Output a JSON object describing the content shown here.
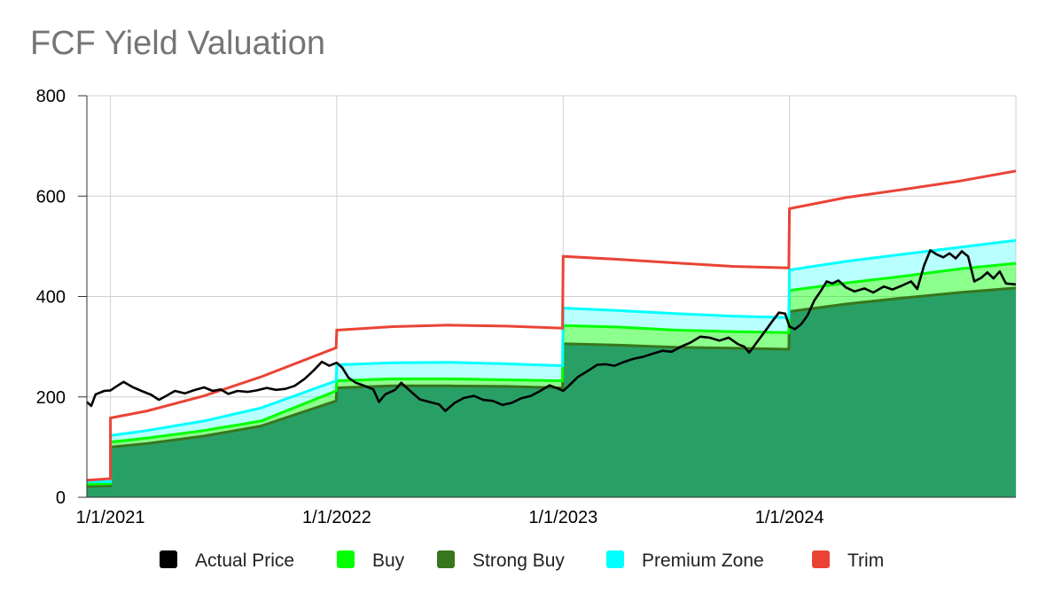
{
  "chart_data": {
    "type": "area",
    "title": "FCF Yield Valuation",
    "xlabel": "",
    "ylabel": "",
    "x_range": [
      "2020-11-24",
      "2024-12-31"
    ],
    "ylim": [
      0,
      800
    ],
    "y_ticks": [
      0,
      200,
      400,
      600,
      800
    ],
    "x_ticks": [
      {
        "date": "2021-01-01",
        "label": "1/1/2021"
      },
      {
        "date": "2022-01-01",
        "label": "1/1/2022"
      },
      {
        "date": "2023-01-01",
        "label": "1/1/2023"
      },
      {
        "date": "2024-01-01",
        "label": "1/1/2024"
      }
    ],
    "grid": true,
    "legend_position": "bottom",
    "series": [
      {
        "name": "Actual Price",
        "color": "#000000",
        "style": "line",
        "points": [
          [
            "2020-11-24",
            190
          ],
          [
            "2020-12-01",
            182
          ],
          [
            "2020-12-08",
            205
          ],
          [
            "2020-12-22",
            212
          ],
          [
            "2021-01-01",
            213
          ],
          [
            "2021-01-12",
            222
          ],
          [
            "2021-01-22",
            230
          ],
          [
            "2021-02-05",
            220
          ],
          [
            "2021-02-20",
            212
          ],
          [
            "2021-03-08",
            204
          ],
          [
            "2021-03-20",
            194
          ],
          [
            "2021-04-01",
            202
          ],
          [
            "2021-04-15",
            212
          ],
          [
            "2021-05-01",
            207
          ],
          [
            "2021-05-15",
            213
          ],
          [
            "2021-06-01",
            219
          ],
          [
            "2021-06-15",
            212
          ],
          [
            "2021-06-28",
            215
          ],
          [
            "2021-07-10",
            206
          ],
          [
            "2021-07-25",
            212
          ],
          [
            "2021-08-10",
            210
          ],
          [
            "2021-08-25",
            213
          ],
          [
            "2021-09-10",
            218
          ],
          [
            "2021-09-25",
            214
          ],
          [
            "2021-10-10",
            216
          ],
          [
            "2021-10-25",
            222
          ],
          [
            "2021-11-10",
            236
          ],
          [
            "2021-11-25",
            253
          ],
          [
            "2021-12-08",
            270
          ],
          [
            "2021-12-20",
            262
          ],
          [
            "2022-01-01",
            268
          ],
          [
            "2022-01-10",
            258
          ],
          [
            "2022-01-20",
            238
          ],
          [
            "2022-02-01",
            228
          ],
          [
            "2022-02-15",
            222
          ],
          [
            "2022-03-01",
            215
          ],
          [
            "2022-03-10",
            190
          ],
          [
            "2022-03-20",
            205
          ],
          [
            "2022-04-05",
            214
          ],
          [
            "2022-04-15",
            228
          ],
          [
            "2022-05-01",
            210
          ],
          [
            "2022-05-15",
            195
          ],
          [
            "2022-05-30",
            190
          ],
          [
            "2022-06-15",
            185
          ],
          [
            "2022-06-25",
            172
          ],
          [
            "2022-07-10",
            188
          ],
          [
            "2022-07-25",
            198
          ],
          [
            "2022-08-10",
            202
          ],
          [
            "2022-08-25",
            194
          ],
          [
            "2022-09-10",
            192
          ],
          [
            "2022-09-25",
            184
          ],
          [
            "2022-10-10",
            188
          ],
          [
            "2022-10-25",
            197
          ],
          [
            "2022-11-10",
            202
          ],
          [
            "2022-11-25",
            212
          ],
          [
            "2022-12-10",
            223
          ],
          [
            "2022-12-25",
            216
          ],
          [
            "2023-01-01",
            212
          ],
          [
            "2023-01-10",
            222
          ],
          [
            "2023-01-25",
            240
          ],
          [
            "2023-02-10",
            252
          ],
          [
            "2023-02-25",
            264
          ],
          [
            "2023-03-10",
            265
          ],
          [
            "2023-03-25",
            262
          ],
          [
            "2023-04-10",
            270
          ],
          [
            "2023-04-25",
            276
          ],
          [
            "2023-05-10",
            280
          ],
          [
            "2023-05-25",
            286
          ],
          [
            "2023-06-10",
            292
          ],
          [
            "2023-06-25",
            290
          ],
          [
            "2023-07-10",
            300
          ],
          [
            "2023-07-25",
            308
          ],
          [
            "2023-08-10",
            320
          ],
          [
            "2023-08-25",
            318
          ],
          [
            "2023-09-10",
            312
          ],
          [
            "2023-09-25",
            318
          ],
          [
            "2023-10-10",
            305
          ],
          [
            "2023-10-20",
            300
          ],
          [
            "2023-10-28",
            288
          ],
          [
            "2023-11-10",
            310
          ],
          [
            "2023-11-25",
            335
          ],
          [
            "2023-12-05",
            352
          ],
          [
            "2023-12-15",
            368
          ],
          [
            "2023-12-25",
            366
          ],
          [
            "2024-01-01",
            340
          ],
          [
            "2024-01-10",
            335
          ],
          [
            "2024-01-20",
            345
          ],
          [
            "2024-01-30",
            362
          ],
          [
            "2024-02-10",
            392
          ],
          [
            "2024-02-20",
            410
          ],
          [
            "2024-03-01",
            430
          ],
          [
            "2024-03-10",
            426
          ],
          [
            "2024-03-20",
            432
          ],
          [
            "2024-04-01",
            418
          ],
          [
            "2024-04-15",
            410
          ],
          [
            "2024-05-01",
            416
          ],
          [
            "2024-05-15",
            408
          ],
          [
            "2024-06-01",
            420
          ],
          [
            "2024-06-15",
            414
          ],
          [
            "2024-07-01",
            422
          ],
          [
            "2024-07-15",
            430
          ],
          [
            "2024-07-25",
            415
          ],
          [
            "2024-08-05",
            462
          ],
          [
            "2024-08-15",
            492
          ],
          [
            "2024-08-25",
            484
          ],
          [
            "2024-09-05",
            478
          ],
          [
            "2024-09-15",
            486
          ],
          [
            "2024-09-25",
            476
          ],
          [
            "2024-10-05",
            490
          ],
          [
            "2024-10-15",
            480
          ],
          [
            "2024-10-25",
            430
          ],
          [
            "2024-11-05",
            437
          ],
          [
            "2024-11-15",
            448
          ],
          [
            "2024-11-25",
            436
          ],
          [
            "2024-12-05",
            450
          ],
          [
            "2024-12-15",
            426
          ],
          [
            "2024-12-31",
            424
          ]
        ]
      },
      {
        "name": "Buy",
        "color": "#00ff00",
        "style": "area",
        "points": [
          [
            "2020-11-24",
            26
          ],
          [
            "2021-01-01",
            27
          ],
          [
            "2021-01-01",
            110
          ],
          [
            "2021-03-01",
            118
          ],
          [
            "2021-06-01",
            133
          ],
          [
            "2021-09-01",
            152
          ],
          [
            "2021-12-31",
            212
          ],
          [
            "2022-01-01",
            232
          ],
          [
            "2022-04-01",
            236
          ],
          [
            "2022-07-01",
            236
          ],
          [
            "2022-10-01",
            234
          ],
          [
            "2022-12-31",
            232
          ],
          [
            "2023-01-01",
            342
          ],
          [
            "2023-04-01",
            339
          ],
          [
            "2023-07-01",
            333
          ],
          [
            "2023-10-01",
            330
          ],
          [
            "2023-12-31",
            328
          ],
          [
            "2024-01-01",
            412
          ],
          [
            "2024-04-01",
            427
          ],
          [
            "2024-07-01",
            440
          ],
          [
            "2024-10-01",
            455
          ],
          [
            "2024-12-31",
            466
          ]
        ]
      },
      {
        "name": "Strong Buy",
        "color": "#38761d",
        "style": "area",
        "points": [
          [
            "2020-11-24",
            22
          ],
          [
            "2021-01-01",
            23
          ],
          [
            "2021-01-01",
            100
          ],
          [
            "2021-03-01",
            107
          ],
          [
            "2021-06-01",
            122
          ],
          [
            "2021-09-01",
            142
          ],
          [
            "2021-12-31",
            192
          ],
          [
            "2022-01-01",
            218
          ],
          [
            "2022-04-01",
            222
          ],
          [
            "2022-07-01",
            222
          ],
          [
            "2022-10-01",
            221
          ],
          [
            "2022-12-31",
            218
          ],
          [
            "2023-01-01",
            306
          ],
          [
            "2023-04-01",
            303
          ],
          [
            "2023-07-01",
            299
          ],
          [
            "2023-10-01",
            297
          ],
          [
            "2023-12-31",
            295
          ],
          [
            "2024-01-01",
            370
          ],
          [
            "2024-04-01",
            385
          ],
          [
            "2024-07-01",
            397
          ],
          [
            "2024-10-01",
            408
          ],
          [
            "2024-12-31",
            417
          ]
        ]
      },
      {
        "name": "Premium Zone",
        "color": "#00ffff",
        "style": "area",
        "points": [
          [
            "2020-11-24",
            31
          ],
          [
            "2021-01-01",
            31
          ],
          [
            "2021-01-01",
            123
          ],
          [
            "2021-03-01",
            133
          ],
          [
            "2021-06-01",
            152
          ],
          [
            "2021-09-01",
            178
          ],
          [
            "2021-12-31",
            232
          ],
          [
            "2022-01-01",
            264
          ],
          [
            "2022-04-01",
            268
          ],
          [
            "2022-07-01",
            269
          ],
          [
            "2022-10-01",
            266
          ],
          [
            "2022-12-31",
            262
          ],
          [
            "2023-01-01",
            377
          ],
          [
            "2023-04-01",
            372
          ],
          [
            "2023-07-01",
            366
          ],
          [
            "2023-10-01",
            361
          ],
          [
            "2023-12-31",
            358
          ],
          [
            "2024-01-01",
            453
          ],
          [
            "2024-04-01",
            470
          ],
          [
            "2024-07-01",
            484
          ],
          [
            "2024-10-01",
            498
          ],
          [
            "2024-12-31",
            512
          ]
        ]
      },
      {
        "name": "Trim",
        "color": "#ea4335",
        "style": "line",
        "points": [
          [
            "2020-11-24",
            34
          ],
          [
            "2021-01-01",
            37
          ],
          [
            "2021-01-01",
            158
          ],
          [
            "2021-03-01",
            172
          ],
          [
            "2021-06-01",
            202
          ],
          [
            "2021-09-01",
            240
          ],
          [
            "2021-12-31",
            298
          ],
          [
            "2022-01-01",
            333
          ],
          [
            "2022-04-01",
            340
          ],
          [
            "2022-07-01",
            343
          ],
          [
            "2022-10-01",
            341
          ],
          [
            "2022-12-31",
            337
          ],
          [
            "2023-01-01",
            480
          ],
          [
            "2023-04-01",
            474
          ],
          [
            "2023-07-01",
            467
          ],
          [
            "2023-10-01",
            460
          ],
          [
            "2023-12-31",
            457
          ],
          [
            "2024-01-01",
            575
          ],
          [
            "2024-04-01",
            597
          ],
          [
            "2024-07-01",
            613
          ],
          [
            "2024-10-01",
            630
          ],
          [
            "2024-12-31",
            650
          ]
        ]
      }
    ]
  }
}
